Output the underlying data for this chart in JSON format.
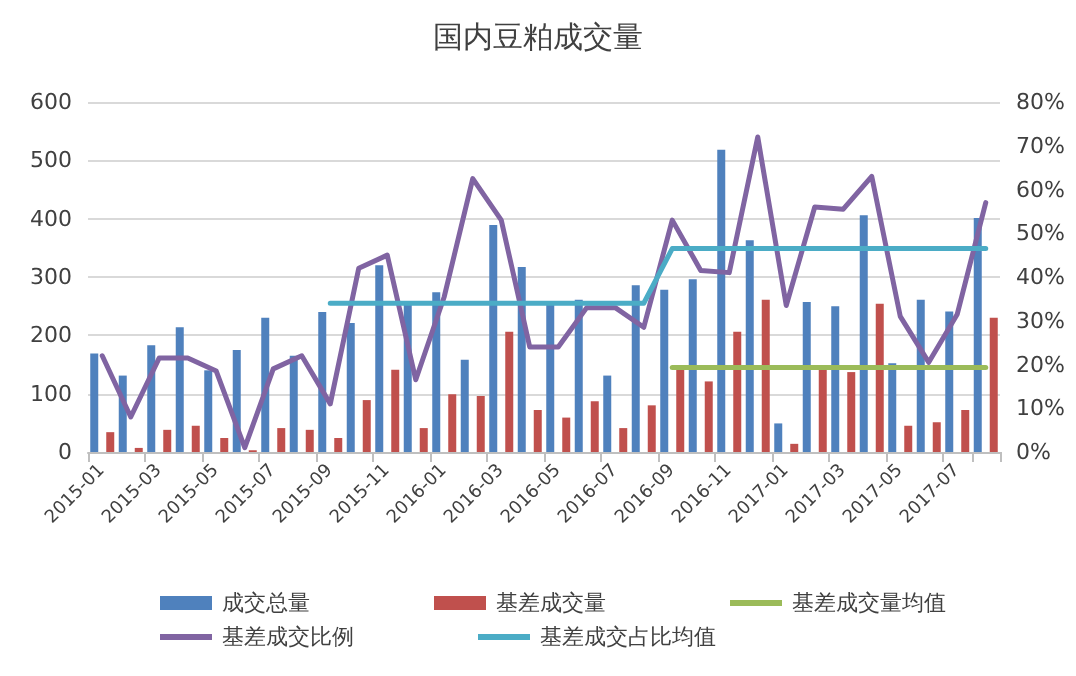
{
  "chart_data": {
    "type": "bar",
    "title": "国内豆粕成交量",
    "categories": [
      "2015-01",
      null,
      "2015-03",
      null,
      "2015-05",
      null,
      "2015-07",
      null,
      "2015-09",
      null,
      "2015-11",
      null,
      "2016-01",
      null,
      "2016-03",
      null,
      "2016-05",
      null,
      "2016-07",
      null,
      "2016-09",
      null,
      "2016-11",
      null,
      "2017-01",
      null,
      "2017-03",
      null,
      "2017-05",
      null,
      "2017-07",
      null
    ],
    "series": [
      {
        "name": "成交总量",
        "color": "#4f81bd",
        "values": [
          169,
          131,
          183,
          214,
          140,
          175,
          230,
          165,
          240,
          221,
          320,
          255,
          274,
          158,
          389,
          317,
          257,
          261,
          131,
          286,
          278,
          296,
          518,
          363,
          49,
          257,
          250,
          406,
          152,
          261,
          241,
          401
        ]
      },
      {
        "name": "基差成交量",
        "color": "#c0504d",
        "values": [
          34,
          7,
          38,
          45,
          24,
          3,
          41,
          38,
          24,
          89,
          141,
          41,
          99,
          96,
          206,
          72,
          59,
          87,
          41,
          80,
          144,
          121,
          206,
          261,
          14,
          144,
          137,
          254,
          45,
          51,
          72,
          230
        ]
      },
      {
        "name": "基差成交量均值",
        "type": "line",
        "color": "#9bbb59",
        "values": [
          null,
          null,
          null,
          null,
          null,
          null,
          null,
          null,
          null,
          null,
          null,
          null,
          null,
          null,
          null,
          null,
          null,
          null,
          null,
          null,
          145,
          145,
          145,
          145,
          145,
          145,
          145,
          145,
          145,
          145,
          145,
          145
        ]
      },
      {
        "name": "基差成交比例",
        "type": "line",
        "axis": "y2",
        "color": "#8064a2",
        "values": [
          22,
          8,
          21.5,
          21.5,
          18.5,
          1,
          19,
          22,
          11,
          42,
          45,
          16.5,
          35.5,
          62.5,
          53,
          24,
          24,
          33,
          33,
          28.5,
          53,
          41.5,
          41,
          72,
          33.5,
          56,
          55.5,
          63,
          31,
          20.5,
          31.5,
          57
        ]
      },
      {
        "name": "基差成交占比均值",
        "type": "line",
        "axis": "y2",
        "color": "#4bacc6",
        "values": [
          null,
          null,
          null,
          null,
          null,
          null,
          null,
          null,
          34,
          34,
          34,
          34,
          34,
          34,
          34,
          34,
          34,
          34,
          34,
          34,
          46.5,
          46.5,
          46.5,
          46.5,
          46.5,
          46.5,
          46.5,
          46.5,
          46.5,
          46.5,
          46.5,
          46.5
        ]
      }
    ],
    "ylim": [
      0,
      600
    ],
    "yticks": [
      0,
      100,
      200,
      300,
      400,
      500,
      600
    ],
    "y2lim": [
      0,
      80
    ],
    "y2ticks": [
      {
        "value": 0,
        "label": "0%"
      },
      {
        "value": 10,
        "label": "10%"
      },
      {
        "value": 20,
        "label": "20%"
      },
      {
        "value": 30,
        "label": "30%"
      },
      {
        "value": 40,
        "label": "40%"
      },
      {
        "value": 50,
        "label": "50%"
      },
      {
        "value": 60,
        "label": "60%"
      },
      {
        "value": 70,
        "label": "70%"
      },
      {
        "value": 80,
        "label": "80%"
      }
    ],
    "grid": "y",
    "legend": "bottom",
    "marker": "none",
    "line_style": "solid"
  }
}
